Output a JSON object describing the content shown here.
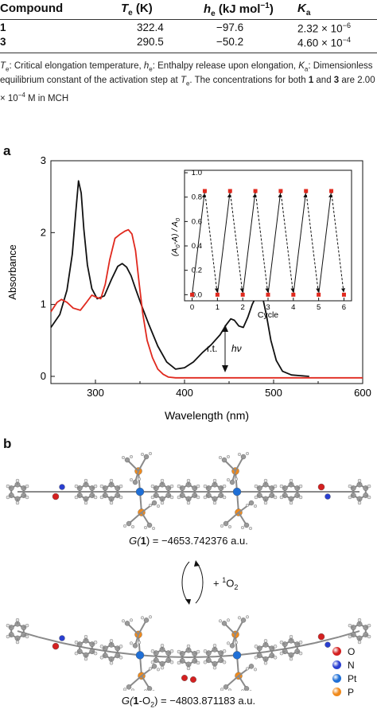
{
  "table": {
    "headers": {
      "compound": "Compound",
      "te": "T",
      "te_sub": "e",
      "te_unit": " (K)",
      "he": "h",
      "he_sub": "e",
      "he_unit": " (kJ mol",
      "he_sup": "−1",
      "he_close": ")",
      "ka": "K",
      "ka_sub": "a"
    },
    "rows": [
      {
        "compound": "1",
        "te": "322.4",
        "he": "−97.6",
        "ka_base": "2.32 × 10",
        "ka_exp": "−6"
      },
      {
        "compound": "3",
        "te": "290.5",
        "he": "−50.2",
        "ka_base": "4.60 × 10",
        "ka_exp": "−4"
      }
    ],
    "footnote": {
      "p1": "T",
      "p1_sub": "e",
      "p2": ": Critical elongation temperature, ",
      "p3": "h",
      "p3_sub": "e",
      "p4": ": Enthalpy release upon elongation, ",
      "p5": "K",
      "p5_sub": "a",
      "p6": ": Dimensionless equilibrium constant of the activation step at ",
      "p7": "T",
      "p7_sub": "e",
      "p8": ". The concentrations for both ",
      "p9": "1",
      "p10": " and ",
      "p11": "3",
      "p12": " are 2.00 × 10",
      "p12_sup": "−4",
      "p13": " M in MCH"
    }
  },
  "panel_a": {
    "label": "a"
  },
  "panel_b": {
    "label": "b",
    "energy1_pre": "G(",
    "energy1_bold": "1",
    "energy1_post": ") = −4653.742376 a.u.",
    "reaction_pre": "+ ",
    "reaction_sup": "1",
    "reaction_post": "O",
    "reaction_sub": "2",
    "energy2_pre": "G(",
    "energy2_bold": "1",
    "energy2_mid": "-O",
    "energy2_sub": "2",
    "energy2_post": ") = −4803.871183 a.u.",
    "legend": [
      {
        "label": "O",
        "color": "#d42020"
      },
      {
        "label": "N",
        "color": "#2a3fd0"
      },
      {
        "label": "Pt",
        "color": "#1f6fd6"
      },
      {
        "label": "P",
        "color": "#f08a1c"
      }
    ]
  },
  "chart_data": [
    {
      "type": "line",
      "xlabel": "Wavelength (nm)",
      "ylabel": "Absorbance",
      "xlim": [
        250,
        600
      ],
      "ylim": [
        -0.1,
        3
      ],
      "xticks": [
        300,
        400,
        500,
        600
      ],
      "yticks": [
        0,
        1,
        2,
        3
      ],
      "series": [
        {
          "color": "#111111",
          "x": [
            250,
            260,
            268,
            274,
            278,
            281,
            284,
            287,
            291,
            296,
            302,
            310,
            318,
            325,
            330,
            335,
            340,
            345,
            352,
            360,
            370,
            380,
            390,
            400,
            410,
            420,
            430,
            440,
            447,
            452,
            456,
            461,
            466,
            471,
            476,
            480,
            484,
            488,
            492,
            497,
            503,
            510,
            520,
            530,
            540
          ],
          "y": [
            0.68,
            0.86,
            1.2,
            1.7,
            2.3,
            2.72,
            2.55,
            2.05,
            1.55,
            1.22,
            1.08,
            1.12,
            1.35,
            1.53,
            1.57,
            1.52,
            1.4,
            1.22,
            0.98,
            0.72,
            0.42,
            0.2,
            0.1,
            0.12,
            0.2,
            0.33,
            0.44,
            0.58,
            0.72,
            0.8,
            0.78,
            0.7,
            0.68,
            0.82,
            1.0,
            1.1,
            1.15,
            1.08,
            0.85,
            0.5,
            0.22,
            0.07,
            0.02,
            0.01,
            0.0
          ]
        },
        {
          "color": "#e0291e",
          "x": [
            250,
            257,
            262,
            268,
            275,
            283,
            290,
            296,
            301,
            306,
            311,
            316,
            322,
            328,
            333,
            337,
            341,
            345,
            349,
            353,
            358,
            364,
            370,
            376,
            382,
            390,
            400,
            450,
            500,
            550,
            600
          ],
          "y": [
            0.9,
            1.03,
            1.07,
            1.03,
            0.95,
            0.92,
            1.03,
            1.13,
            1.1,
            1.08,
            1.28,
            1.62,
            1.92,
            1.98,
            2.02,
            2.04,
            1.98,
            1.75,
            1.3,
            0.88,
            0.5,
            0.26,
            0.1,
            0.03,
            -0.01,
            -0.02,
            -0.02,
            -0.02,
            -0.02,
            -0.02,
            -0.02
          ]
        }
      ],
      "annotations": {
        "rt": "r.t.",
        "hv": "hν"
      }
    },
    {
      "type": "line",
      "xlabel": "Cycle",
      "ylabel_prefix": "(A",
      "ylabel_sub1": "0",
      "ylabel_mid": "-A) / A",
      "ylabel_sub2": "0",
      "xlim": [
        -0.3,
        6.3
      ],
      "ylim": [
        -0.05,
        1.02
      ],
      "xticks": [
        0,
        1,
        2,
        3,
        4,
        5,
        6
      ],
      "yticks": [
        0.0,
        0.2,
        0.4,
        0.6,
        0.8,
        1.0
      ],
      "points": [
        {
          "x": 0,
          "y": 0.0
        },
        {
          "x": 0.5,
          "y": 0.85
        },
        {
          "x": 1.0,
          "y": 0.0
        },
        {
          "x": 1.5,
          "y": 0.85
        },
        {
          "x": 2.0,
          "y": 0.0
        },
        {
          "x": 2.5,
          "y": 0.85
        },
        {
          "x": 3.0,
          "y": 0.0
        },
        {
          "x": 3.5,
          "y": 0.85
        },
        {
          "x": 4.0,
          "y": 0.0
        },
        {
          "x": 4.5,
          "y": 0.85
        },
        {
          "x": 5.0,
          "y": 0.0
        },
        {
          "x": 5.5,
          "y": 0.85
        },
        {
          "x": 6.0,
          "y": 0.0
        }
      ]
    }
  ]
}
